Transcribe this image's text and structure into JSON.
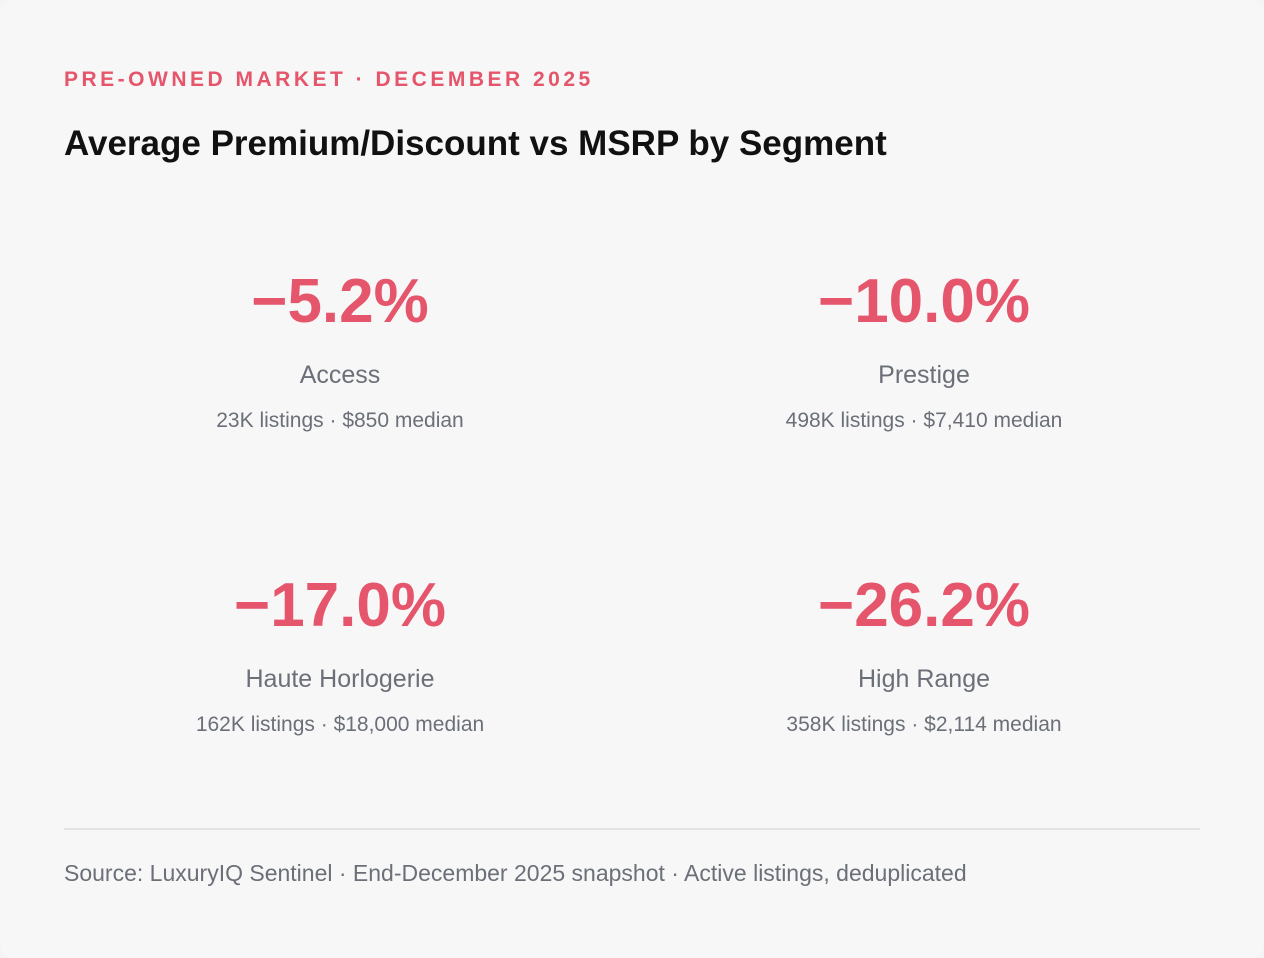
{
  "header": {
    "eyebrow": "PRE-OWNED MARKET · DECEMBER 2025",
    "title": "Average Premium/Discount vs MSRP by Segment"
  },
  "chart_data": {
    "type": "table",
    "title": "Average Premium/Discount vs MSRP by Segment",
    "unit": "percent",
    "segments": [
      {
        "label": "Access",
        "value": -5.2,
        "display_value": "−5.2%",
        "listings": "23K listings",
        "median": "$850 median"
      },
      {
        "label": "Prestige",
        "value": -10.0,
        "display_value": "−10.0%",
        "listings": "498K listings",
        "median": "$7,410 median"
      },
      {
        "label": "Haute Horlogerie",
        "value": -17.0,
        "display_value": "−17.0%",
        "listings": "162K listings",
        "median": "$18,000 median"
      },
      {
        "label": "High Range",
        "value": -26.2,
        "display_value": "−26.2%",
        "listings": "358K listings",
        "median": "$2,114 median"
      }
    ],
    "separator": " · "
  },
  "footer": {
    "source": "Source: LuxuryIQ Sentinel · End-December 2025 snapshot · Active listings, deduplicated"
  },
  "colors": {
    "accent": "#e5556b",
    "muted_text": "#6b6f78",
    "title_text": "#111111",
    "background": "#f7f7f7",
    "divider": "#e3e3e5"
  }
}
